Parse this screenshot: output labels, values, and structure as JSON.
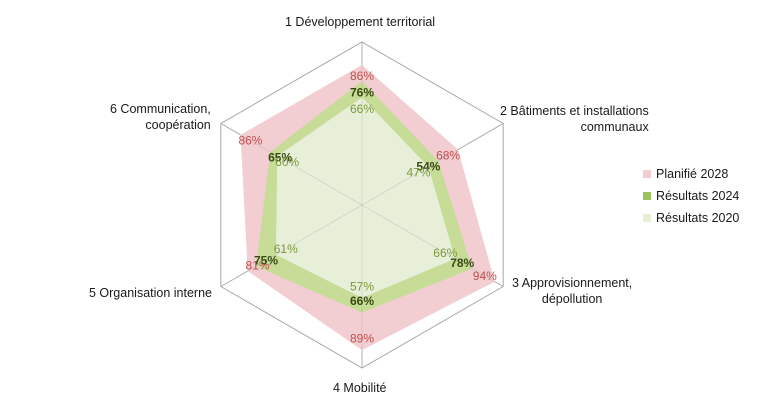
{
  "chart_data": {
    "type": "radar",
    "axes": [
      "1 Développement territorial",
      "2 Bâtiments et installations\ncommunaux",
      "3 Approvisionnement,\ndépollution",
      "4 Mobilité",
      "5 Organisation interne",
      "6 Communication,\ncoopération"
    ],
    "range": [
      0,
      100
    ],
    "series": [
      {
        "name": "Planifié 2028",
        "values": [
          86,
          68,
          94,
          89,
          81,
          86
        ],
        "labels": [
          "86%",
          "68%",
          "94%",
          "89%",
          "81%",
          "86%"
        ],
        "color": "#f2cdd2",
        "label_color": "#c0504d"
      },
      {
        "name": "Résultats 2024",
        "values": [
          76,
          54,
          78,
          66,
          75,
          65
        ],
        "labels": [
          "76%",
          "54%",
          "78%",
          "66%",
          "75%",
          "65%"
        ],
        "color": "#c6dc97",
        "label_color": "#3a4a12"
      },
      {
        "name": "Résultats 2020",
        "values": [
          66,
          47,
          66,
          57,
          61,
          60
        ],
        "labels": [
          "66%",
          "47%",
          "66%",
          "57%",
          "61%",
          "60%"
        ],
        "color": "#e8efd9",
        "label_color": "#7a9a3a"
      }
    ],
    "grid": true,
    "legend_position": "right"
  }
}
